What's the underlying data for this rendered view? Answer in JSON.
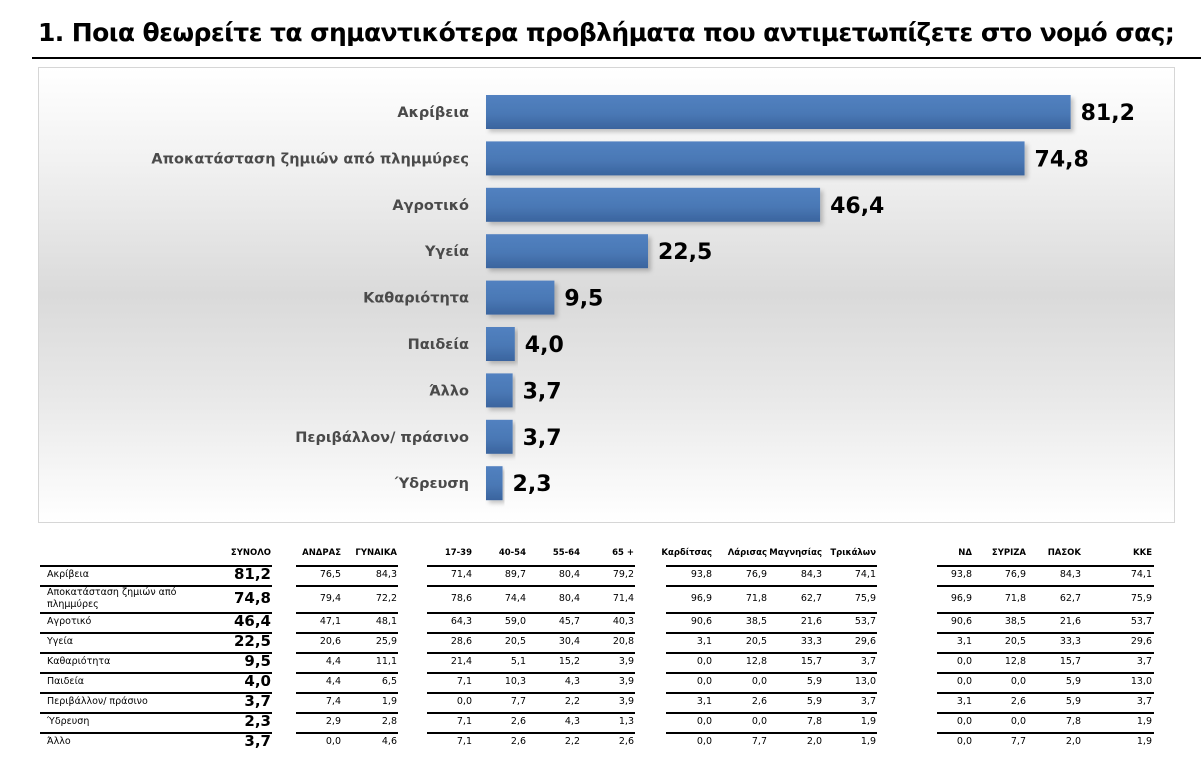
{
  "title": "1. Ποια θεωρείτε τα σημαντικότερα προβλήματα που αντιμετωπίζετε στο νομό σας;",
  "colors": {
    "bar": "#4a78b5",
    "bar_dark": "#3b65a0",
    "text": "#000000",
    "label": "#4a4a4a"
  },
  "chart_data": {
    "type": "bar",
    "orientation": "horizontal",
    "title": "1. Ποια θεωρείτε τα σημαντικότερα προβλήματα που αντιμετωπίζετε στο νομό σας;",
    "categories": [
      "Ακρίβεια",
      "Αποκατάσταση ζημιών από πλημμύρες",
      "Αγροτικό",
      "Υγεία",
      "Καθαριότητα",
      "Παιδεία",
      "Άλλο",
      "Περιβάλλον/ πράσινο",
      "Ύδρευση"
    ],
    "values": [
      81.2,
      74.8,
      46.4,
      22.5,
      9.5,
      4.0,
      3.7,
      3.7,
      2.3
    ],
    "value_labels": [
      "81,2",
      "74,8",
      "46,4",
      "22,5",
      "9,5",
      "4,0",
      "3,7",
      "3,7",
      "2,3"
    ],
    "xlabel": "",
    "ylabel": "",
    "xlim": [
      0,
      100
    ],
    "grid": false,
    "legend": "none"
  },
  "table": {
    "headers": {
      "total": "ΣΥΝΟΛΟ",
      "gender": [
        "ΑΝΔΡΑΣ",
        "ΓΥΝΑΙΚΑ"
      ],
      "age": [
        "17-39",
        "40-54",
        "55-64",
        "65 +"
      ],
      "region": [
        "Καρδίτσας",
        "Λάρισας",
        "Μαγνησίας",
        "Τρικάλων"
      ],
      "party": [
        "ΝΔ",
        "ΣΥΡΙΖΑ",
        "ΠΑΣΟΚ",
        "ΚΚΕ"
      ]
    },
    "rows": [
      {
        "label": "Ακρίβεια",
        "total": "81,2",
        "gender": [
          "76,5",
          "84,3"
        ],
        "age": [
          "71,4",
          "89,7",
          "80,4",
          "79,2"
        ],
        "region": [
          "93,8",
          "76,9",
          "84,3",
          "74,1"
        ],
        "party": [
          "93,8",
          "76,9",
          "84,3",
          "74,1"
        ]
      },
      {
        "label": "Αποκατάσταση ζημιών από πλημμύρες",
        "total": "74,8",
        "gender": [
          "79,4",
          "72,2"
        ],
        "age": [
          "78,6",
          "74,4",
          "80,4",
          "71,4"
        ],
        "region": [
          "96,9",
          "71,8",
          "62,7",
          "75,9"
        ],
        "party": [
          "96,9",
          "71,8",
          "62,7",
          "75,9"
        ]
      },
      {
        "label": "Αγροτικό",
        "total": "46,4",
        "gender": [
          "47,1",
          "48,1"
        ],
        "age": [
          "64,3",
          "59,0",
          "45,7",
          "40,3"
        ],
        "region": [
          "90,6",
          "38,5",
          "21,6",
          "53,7"
        ],
        "party": [
          "90,6",
          "38,5",
          "21,6",
          "53,7"
        ]
      },
      {
        "label": "Υγεία",
        "total": "22,5",
        "gender": [
          "20,6",
          "25,9"
        ],
        "age": [
          "28,6",
          "20,5",
          "30,4",
          "20,8"
        ],
        "region": [
          "3,1",
          "20,5",
          "33,3",
          "29,6"
        ],
        "party": [
          "3,1",
          "20,5",
          "33,3",
          "29,6"
        ]
      },
      {
        "label": "Καθαριότητα",
        "total": "9,5",
        "gender": [
          "4,4",
          "11,1"
        ],
        "age": [
          "21,4",
          "5,1",
          "15,2",
          "3,9"
        ],
        "region": [
          "0,0",
          "12,8",
          "15,7",
          "3,7"
        ],
        "party": [
          "0,0",
          "12,8",
          "15,7",
          "3,7"
        ]
      },
      {
        "label": "Παιδεία",
        "total": "4,0",
        "gender": [
          "4,4",
          "6,5"
        ],
        "age": [
          "7,1",
          "10,3",
          "4,3",
          "3,9"
        ],
        "region": [
          "0,0",
          "0,0",
          "5,9",
          "13,0"
        ],
        "party": [
          "0,0",
          "0,0",
          "5,9",
          "13,0"
        ]
      },
      {
        "label": "Περιβάλλον/ πράσινο",
        "total": "3,7",
        "gender": [
          "7,4",
          "1,9"
        ],
        "age": [
          "0,0",
          "7,7",
          "2,2",
          "3,9"
        ],
        "region": [
          "3,1",
          "2,6",
          "5,9",
          "3,7"
        ],
        "party": [
          "3,1",
          "2,6",
          "5,9",
          "3,7"
        ]
      },
      {
        "label": "Ύδρευση",
        "total": "2,3",
        "gender": [
          "2,9",
          "2,8"
        ],
        "age": [
          "7,1",
          "2,6",
          "4,3",
          "1,3"
        ],
        "region": [
          "0,0",
          "0,0",
          "7,8",
          "1,9"
        ],
        "party": [
          "0,0",
          "0,0",
          "7,8",
          "1,9"
        ]
      },
      {
        "label": "Άλλο",
        "total": "3,7",
        "gender": [
          "0,0",
          "4,6"
        ],
        "age": [
          "7,1",
          "2,6",
          "2,2",
          "2,6"
        ],
        "region": [
          "0,0",
          "7,7",
          "2,0",
          "1,9"
        ],
        "party": [
          "0,0",
          "7,7",
          "2,0",
          "1,9"
        ]
      }
    ]
  }
}
